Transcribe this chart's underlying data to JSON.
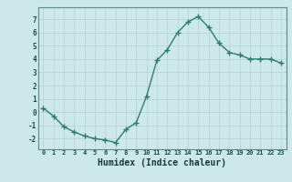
{
  "x": [
    0,
    1,
    2,
    3,
    4,
    5,
    6,
    7,
    8,
    9,
    10,
    11,
    12,
    13,
    14,
    15,
    16,
    17,
    18,
    19,
    20,
    21,
    22,
    23
  ],
  "y": [
    0.3,
    -0.3,
    -1.1,
    -1.5,
    -1.8,
    -2.0,
    -2.1,
    -2.3,
    -1.3,
    -0.8,
    1.2,
    3.9,
    4.7,
    6.0,
    6.8,
    7.2,
    6.4,
    5.2,
    4.5,
    4.3,
    4.0,
    4.0,
    4.0,
    3.7
  ],
  "line_color": "#2e7d6e",
  "marker": "+",
  "marker_size": 4.0,
  "line_width": 1.0,
  "xlabel": "Humidex (Indice chaleur)",
  "xlabel_fontsize": 7,
  "yticks": [
    -2,
    -1,
    0,
    1,
    2,
    3,
    4,
    5,
    6,
    7
  ],
  "xticks": [
    0,
    1,
    2,
    3,
    4,
    5,
    6,
    7,
    8,
    9,
    10,
    11,
    12,
    13,
    14,
    15,
    16,
    17,
    18,
    19,
    20,
    21,
    22,
    23
  ],
  "xlim": [
    -0.5,
    23.5
  ],
  "ylim": [
    -2.8,
    7.9
  ],
  "bg_color": "#cce8e8",
  "grid_color": "#b8d4d4",
  "spine_color": "#5a8a8a"
}
